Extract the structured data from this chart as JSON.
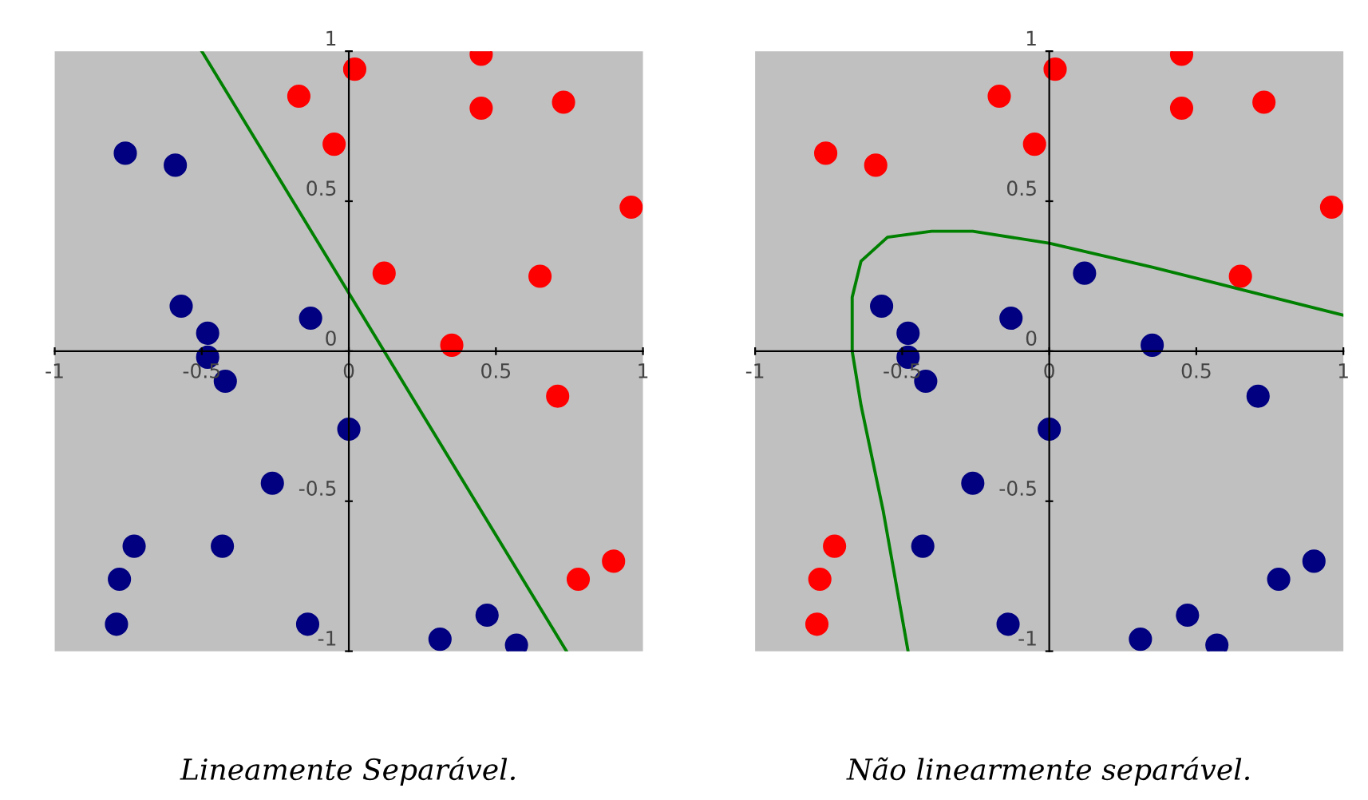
{
  "chart_data": [
    {
      "type": "scatter",
      "annotations": [
        "Lineamente Separável."
      ],
      "xlim": [
        -1,
        1
      ],
      "ylim": [
        -1,
        1
      ],
      "xticks": [
        -1,
        -0.5,
        0,
        0.5,
        1
      ],
      "yticks": [
        -1,
        -0.5,
        0,
        0.5,
        1
      ],
      "grid": false,
      "legend": false,
      "marker": "circle",
      "series": [
        {
          "color": "#ff0000",
          "x": [
            -0.17,
            0.02,
            0.45,
            0.45,
            0.73,
            -0.05,
            0.96,
            0.12,
            0.65,
            0.35,
            0.71,
            0.9,
            0.78
          ],
          "values": [
            0.85,
            0.94,
            0.99,
            0.81,
            0.83,
            0.69,
            0.48,
            0.26,
            0.25,
            0.02,
            -0.15,
            -0.7,
            -0.76
          ]
        },
        {
          "color": "#000080",
          "x": [
            -0.76,
            -0.59,
            -0.57,
            -0.48,
            -0.48,
            -0.42,
            -0.13,
            0.0,
            -0.26,
            -0.73,
            -0.43,
            -0.78,
            -0.79,
            -0.14,
            0.31,
            0.47,
            0.57
          ],
          "values": [
            0.66,
            0.62,
            0.15,
            0.06,
            -0.02,
            -0.1,
            0.11,
            -0.26,
            -0.44,
            -0.65,
            -0.65,
            -0.76,
            -0.91,
            -0.91,
            -0.96,
            -0.88,
            -0.98
          ]
        },
        {
          "type": "line",
          "color": "#008000",
          "marker": "none",
          "x": [
            -0.5,
            0.74
          ],
          "values": [
            1,
            -1
          ]
        }
      ]
    },
    {
      "type": "scatter",
      "annotations": [
        "Não linearmente separável."
      ],
      "xlim": [
        -1,
        1
      ],
      "ylim": [
        -1,
        1
      ],
      "xticks": [
        -1,
        -0.5,
        0,
        0.5,
        1
      ],
      "yticks": [
        -1,
        -0.5,
        0,
        0.5,
        1
      ],
      "grid": false,
      "legend": false,
      "marker": "circle",
      "series": [
        {
          "color": "#ff0000",
          "x": [
            -0.17,
            0.02,
            0.45,
            0.45,
            0.73,
            -0.05,
            0.96,
            0.65,
            -0.76,
            -0.59,
            -0.73,
            -0.78,
            -0.79
          ],
          "values": [
            0.85,
            0.94,
            0.99,
            0.81,
            0.83,
            0.69,
            0.48,
            0.25,
            0.66,
            0.62,
            -0.65,
            -0.76,
            -0.91
          ]
        },
        {
          "color": "#000080",
          "x": [
            -0.57,
            -0.48,
            -0.48,
            -0.42,
            -0.13,
            0.0,
            -0.26,
            -0.43,
            -0.14,
            0.31,
            0.47,
            0.57,
            0.12,
            0.35,
            0.71,
            0.9,
            0.78
          ],
          "values": [
            0.15,
            0.06,
            -0.02,
            -0.1,
            0.11,
            -0.26,
            -0.44,
            -0.65,
            -0.91,
            -0.96,
            -0.88,
            -0.98,
            0.26,
            0.02,
            -0.15,
            -0.7,
            -0.76
          ]
        },
        {
          "type": "line",
          "color": "#008000",
          "marker": "none",
          "x": [
            -0.48,
            -0.565,
            -0.64,
            -0.67,
            -0.67,
            -0.64,
            -0.55,
            -0.4,
            -0.26,
            0.0,
            0.35,
            0.655,
            1.0
          ],
          "values": [
            -1,
            -0.53,
            -0.18,
            0,
            0.18,
            0.3,
            0.38,
            0.4,
            0.4,
            0.36,
            0.28,
            0.205,
            0.12
          ]
        }
      ]
    }
  ]
}
